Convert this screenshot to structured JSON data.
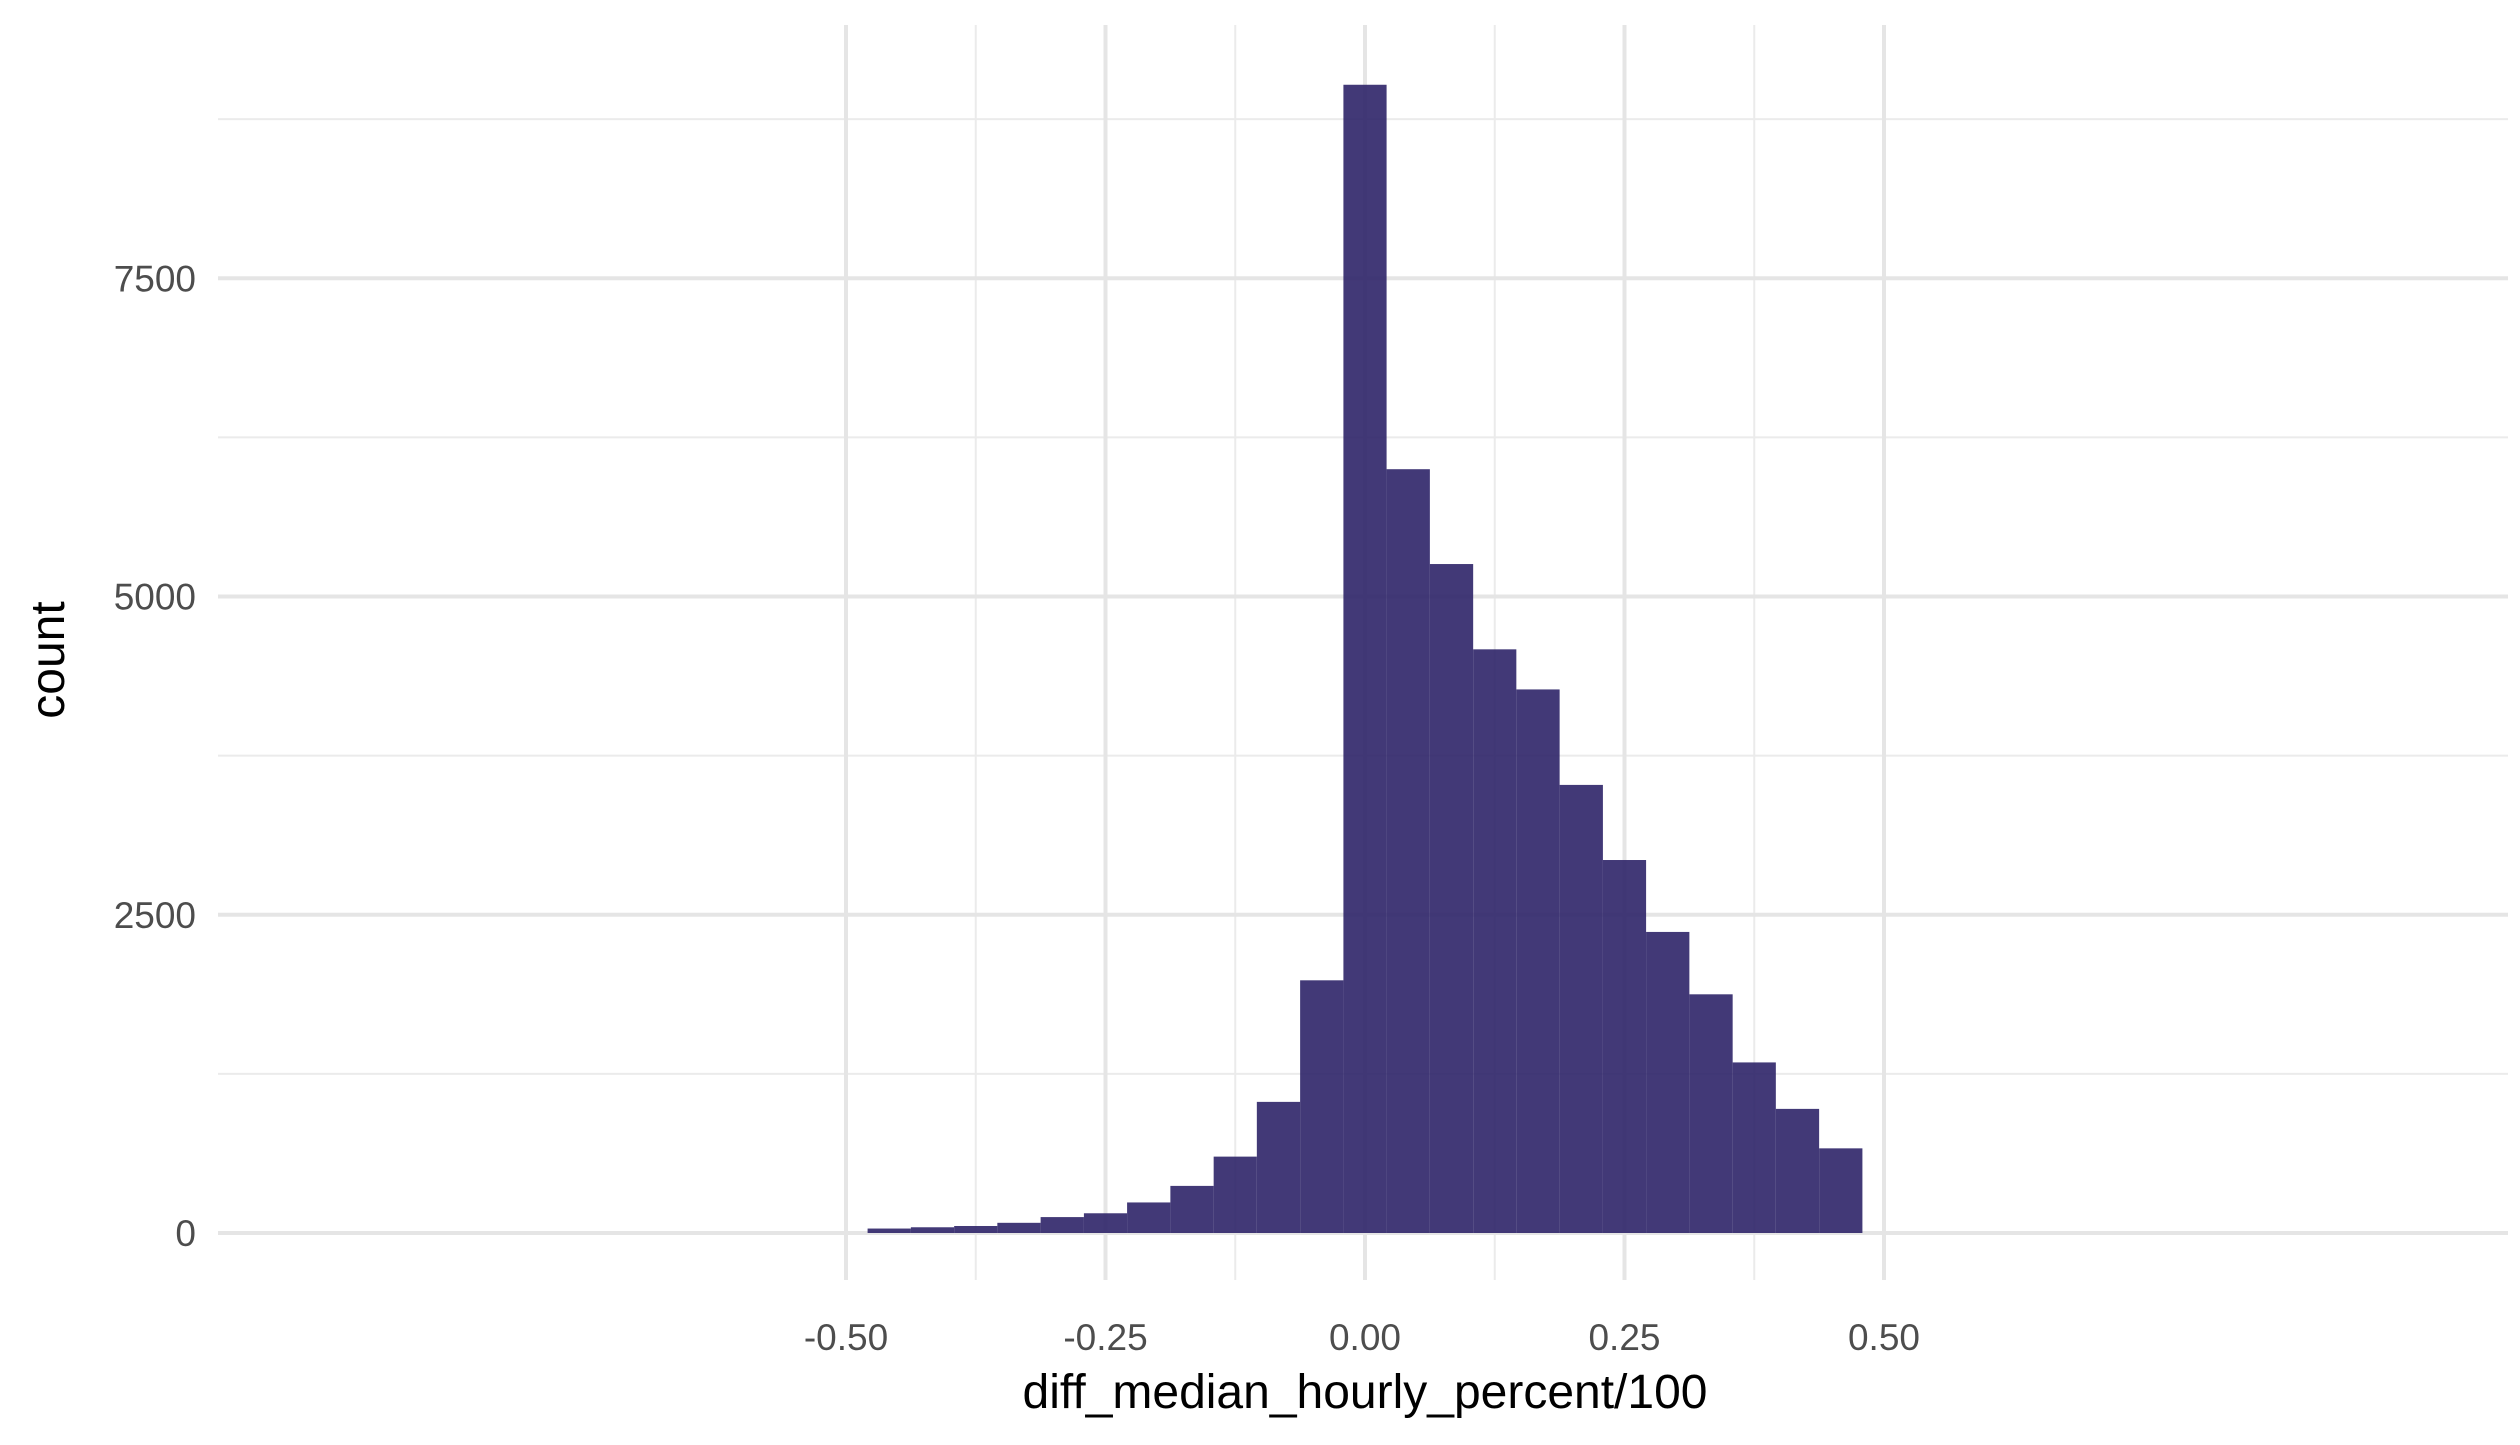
{
  "chart_data": {
    "type": "bar",
    "subtype": "histogram",
    "xlabel": "diff_median_hourly_percent/100",
    "ylabel": "count",
    "xlim": [
      -0.5,
      0.5
    ],
    "ylim": [
      0,
      9000
    ],
    "x_ticks": [
      -0.5,
      -0.25,
      0.0,
      0.25,
      0.5
    ],
    "x_tick_labels": [
      "-0.50",
      "-0.25",
      "0.00",
      "0.25",
      "0.50"
    ],
    "y_ticks": [
      0,
      2500,
      5000,
      7500
    ],
    "y_tick_labels": [
      "0",
      "2500",
      "5000",
      "7500"
    ],
    "grid": true,
    "bar_color": "#2d2468",
    "bins": [
      {
        "x0": -0.4792,
        "x1": -0.4375,
        "count": 35
      },
      {
        "x0": -0.4375,
        "x1": -0.3958,
        "count": 45
      },
      {
        "x0": -0.3958,
        "x1": -0.3542,
        "count": 55
      },
      {
        "x0": -0.3542,
        "x1": -0.3125,
        "count": 80
      },
      {
        "x0": -0.3125,
        "x1": -0.2708,
        "count": 125
      },
      {
        "x0": -0.2708,
        "x1": -0.2292,
        "count": 155
      },
      {
        "x0": -0.2292,
        "x1": -0.1875,
        "count": 240
      },
      {
        "x0": -0.1875,
        "x1": -0.1458,
        "count": 370
      },
      {
        "x0": -0.1458,
        "x1": -0.1042,
        "count": 600
      },
      {
        "x0": -0.1042,
        "x1": -0.0625,
        "count": 1030
      },
      {
        "x0": -0.0625,
        "x1": -0.0208,
        "count": 1985
      },
      {
        "x0": -0.0208,
        "x1": 0.0208,
        "count": 9020
      },
      {
        "x0": 0.0208,
        "x1": 0.0625,
        "count": 6000
      },
      {
        "x0": 0.0625,
        "x1": 0.1042,
        "count": 5255
      },
      {
        "x0": 0.1042,
        "x1": 0.1458,
        "count": 4585
      },
      {
        "x0": 0.1458,
        "x1": 0.1875,
        "count": 4270
      },
      {
        "x0": 0.1875,
        "x1": 0.2292,
        "count": 3520
      },
      {
        "x0": 0.2292,
        "x1": 0.2708,
        "count": 2930
      },
      {
        "x0": 0.2708,
        "x1": 0.3125,
        "count": 2365
      },
      {
        "x0": 0.3125,
        "x1": 0.3542,
        "count": 1875
      },
      {
        "x0": 0.3542,
        "x1": 0.3958,
        "count": 1340
      },
      {
        "x0": 0.3958,
        "x1": 0.4375,
        "count": 975
      },
      {
        "x0": 0.4375,
        "x1": 0.4792,
        "count": 665
      }
    ]
  }
}
